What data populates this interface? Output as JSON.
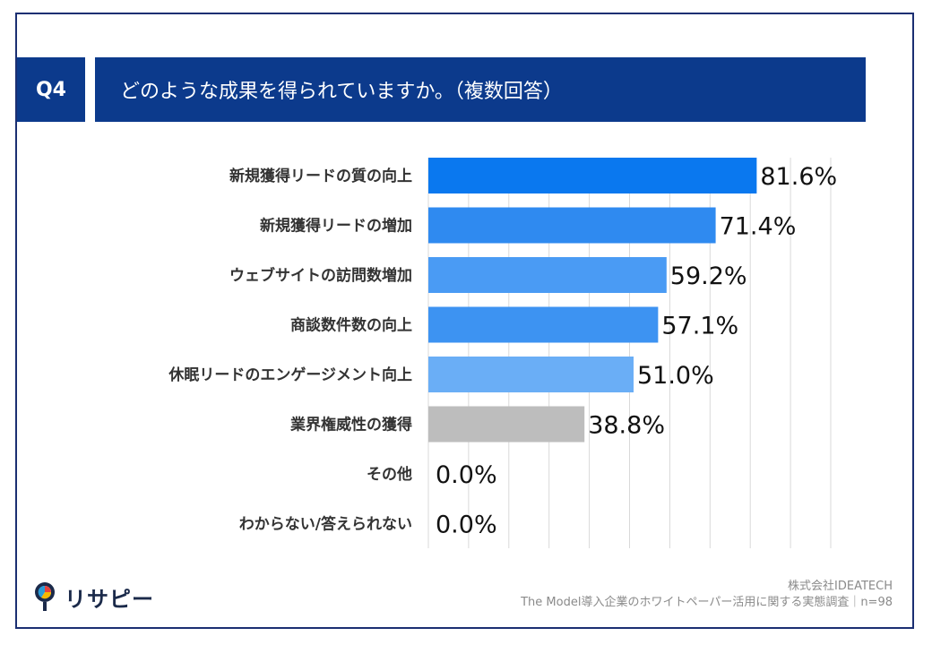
{
  "question": {
    "number": "Q4",
    "text": "どのような成果を得られていますか。（複数回答）"
  },
  "chart_data": {
    "type": "bar",
    "orientation": "horizontal",
    "title": "どのような成果を得られていますか。（複数回答）",
    "categories": [
      "新規獲得リードの質の向上",
      "新規獲得リードの増加",
      "ウェブサイトの訪問数増加",
      "商談数件数の向上",
      "休眠リードのエンゲージメント向上",
      "業界権威性の獲得",
      "その他",
      "わからない/答えられない"
    ],
    "values": [
      81.6,
      71.4,
      59.2,
      57.1,
      51.0,
      38.8,
      0.0,
      0.0
    ],
    "value_labels": [
      "81.6%",
      "71.4%",
      "59.2%",
      "57.1%",
      "51.0%",
      "38.8%",
      "0.0%",
      "0.0%"
    ],
    "bar_colors": [
      "#0a78ef",
      "#2f8af0",
      "#4a9bf4",
      "#3d93f2",
      "#6aaef6",
      "#bdbdbd",
      "#bdbdbd",
      "#bdbdbd"
    ],
    "xlim": [
      0,
      100
    ],
    "grid": true,
    "unit": "%"
  },
  "footer": {
    "company": "株式会社IDEATECH",
    "survey": "The Model導入企業のホワイトペーパー活用に関する実態調査｜n=98"
  },
  "logo": {
    "text": "リサピー",
    "icon": "map-pin-pie-icon"
  }
}
